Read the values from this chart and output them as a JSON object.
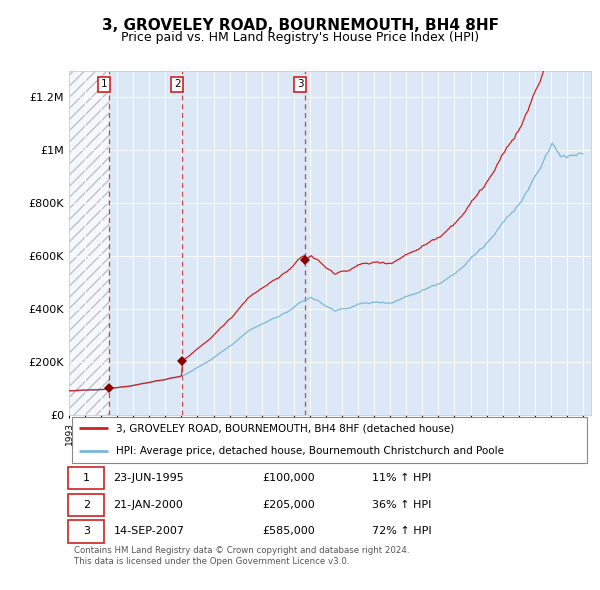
{
  "title": "3, GROVELEY ROAD, BOURNEMOUTH, BH4 8HF",
  "subtitle": "Price paid vs. HM Land Registry's House Price Index (HPI)",
  "ylim": [
    0,
    1300000
  ],
  "yticks": [
    0,
    200000,
    400000,
    600000,
    800000,
    1000000,
    1200000
  ],
  "x_start_year": 1993,
  "x_end_year": 2025,
  "hpi_color": "#7bb8d8",
  "price_color": "#cc2222",
  "sale_marker_color": "#880000",
  "dashed_line_color": "#cc2222",
  "plot_bg_color": "#dce8f5",
  "hatch_color": "#bbbbcc",
  "sales": [
    {
      "date_decimal": 1995.47,
      "price": 100000,
      "label": "1"
    },
    {
      "date_decimal": 2000.05,
      "price": 205000,
      "label": "2"
    },
    {
      "date_decimal": 2007.7,
      "price": 585000,
      "label": "3"
    }
  ],
  "sale_table": [
    {
      "num": "1",
      "date": "23-JUN-1995",
      "price": "£100,000",
      "hpi": "11% ↑ HPI"
    },
    {
      "num": "2",
      "date": "21-JAN-2000",
      "price": "£205,000",
      "hpi": "36% ↑ HPI"
    },
    {
      "num": "3",
      "date": "14-SEP-2007",
      "price": "£585,000",
      "hpi": "72% ↑ HPI"
    }
  ],
  "legend_line1": "3, GROVELEY ROAD, BOURNEMOUTH, BH4 8HF (detached house)",
  "legend_line2": "HPI: Average price, detached house, Bournemouth Christchurch and Poole",
  "footer": "Contains HM Land Registry data © Crown copyright and database right 2024.\nThis data is licensed under the Open Government Licence v3.0.",
  "title_fontsize": 11,
  "subtitle_fontsize": 9
}
